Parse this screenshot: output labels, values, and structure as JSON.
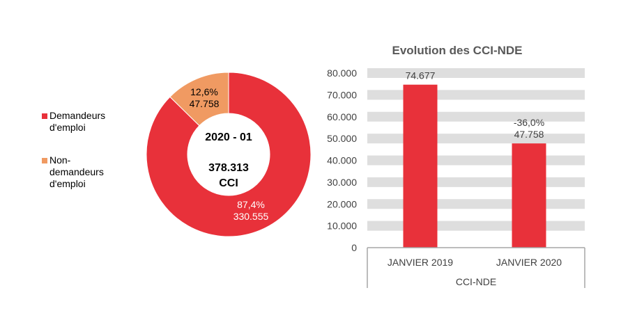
{
  "colors": {
    "demandeurs": "#E8313A",
    "non_demandeurs": "#F09A62",
    "band": "#DEDEDE",
    "axis": "#A6A6A6",
    "text": "#404040"
  },
  "chart_data": [
    {
      "type": "pie",
      "variant": "donut",
      "center_title": "2020 - 01",
      "center_total": "378.313",
      "center_unit": "CCI",
      "legend_placement": "left",
      "slices": [
        {
          "name": "Demandeurs d'emploi",
          "legend_lines": [
            "Demandeurs",
            "d'emploi"
          ],
          "value": 330555,
          "value_label": "330.555",
          "percent_label": "87,4%"
        },
        {
          "name": "Non-demandeurs d'emploi",
          "legend_lines": [
            "Non-",
            "demandeurs",
            "d'emploi"
          ],
          "value": 47758,
          "value_label": "47.758",
          "percent_label": "12,6%"
        }
      ]
    },
    {
      "type": "bar",
      "title": "Evolution des CCI-NDE",
      "group_label": "CCI-NDE",
      "categories": [
        "JANVIER 2019",
        "JANVIER 2020"
      ],
      "values": [
        74677,
        47758
      ],
      "data_labels": [
        [
          "74.677"
        ],
        [
          "-36,0%",
          "47.758"
        ]
      ],
      "ylim": [
        0,
        80000
      ],
      "yticks": [
        0,
        10000,
        20000,
        30000,
        40000,
        50000,
        60000,
        70000,
        80000
      ],
      "ytick_labels": [
        "0",
        "10.000",
        "20.000",
        "30.000",
        "40.000",
        "50.000",
        "60.000",
        "70.000",
        "80.000"
      ],
      "grid": true
    }
  ]
}
